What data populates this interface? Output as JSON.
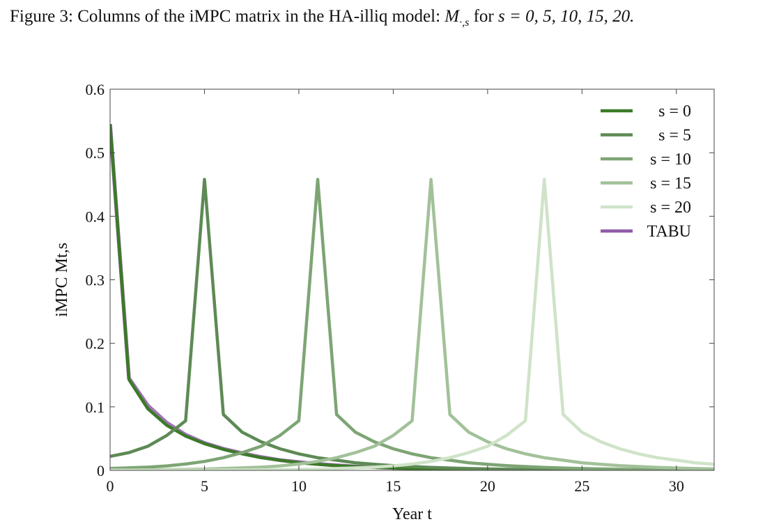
{
  "caption": {
    "prefix": "Figure 3: Columns of the iMPC matrix in the HA-illiq model: ",
    "math_symbol": "M",
    "math_subscript": "·,s",
    "suffix_text": " for ",
    "suffix_math": "s = 0, 5, 10, 15, 20."
  },
  "chart_data": {
    "type": "line",
    "xlabel": "Year t",
    "ylabel": "iMPC Mt,s",
    "xlim": [
      0,
      32
    ],
    "ylim": [
      0,
      0.6
    ],
    "xticks": [
      0,
      5,
      10,
      15,
      20,
      25,
      30
    ],
    "yticks": [
      0,
      0.1,
      0.2,
      0.3,
      0.4,
      0.5,
      0.6
    ],
    "ytick_labels": [
      "0",
      "0.1",
      "0.2",
      "0.3",
      "0.4",
      "0.5",
      "0.6"
    ],
    "grid": false,
    "legend_position": "top-right",
    "x": [
      0,
      1,
      2,
      3,
      4,
      5,
      6,
      7,
      8,
      9,
      10,
      11,
      12,
      13,
      14,
      15,
      16,
      17,
      18,
      19,
      20,
      21,
      22,
      23,
      24,
      25,
      26,
      27,
      28,
      29,
      30,
      31,
      32
    ],
    "series": [
      {
        "name": "s = 0",
        "color": "#3c7a28",
        "values": [
          0.545,
          0.143,
          0.097,
          0.071,
          0.054,
          0.042,
          0.033,
          0.026,
          0.02,
          0.016,
          0.012,
          0.0095,
          0.0075,
          0.006,
          0.0047,
          0.0037,
          0.0029,
          0.0023,
          0.0018,
          0.0014,
          0.0011,
          0.0009,
          0.0007,
          0.0006,
          0.0005,
          0.0004,
          0.0003,
          0.0003,
          0.0002,
          0.0002,
          0.0001,
          0.0001,
          0.0001
        ]
      },
      {
        "name": "s = 5",
        "color": "#5e8a55",
        "values": [
          0.022,
          0.028,
          0.038,
          0.055,
          0.078,
          0.458,
          0.088,
          0.06,
          0.045,
          0.034,
          0.026,
          0.02,
          0.016,
          0.012,
          0.0095,
          0.0075,
          0.006,
          0.0047,
          0.0037,
          0.0029,
          0.0023,
          0.0018,
          0.0014,
          0.0011,
          0.0009,
          0.0007,
          0.0006,
          0.0005,
          0.0004,
          0.0003,
          0.0003,
          0.0002,
          0.0002
        ]
      },
      {
        "name": "s = 10",
        "color": "#7da574",
        "values": [
          0.003,
          0.004,
          0.005,
          0.007,
          0.01,
          0.014,
          0.02,
          0.028,
          0.038,
          0.055,
          0.078,
          0.458,
          0.088,
          0.06,
          0.045,
          0.034,
          0.026,
          0.02,
          0.016,
          0.012,
          0.0095,
          0.0075,
          0.006,
          0.0047,
          0.0037,
          0.0029,
          0.0023,
          0.0018,
          0.0014,
          0.0011,
          0.0009,
          0.0007,
          0.0006
        ]
      },
      {
        "name": "s = 15",
        "color": "#a2c199",
        "values": [
          0.0005,
          0.0006,
          0.0008,
          0.0011,
          0.0015,
          0.002,
          0.003,
          0.004,
          0.005,
          0.007,
          0.01,
          0.014,
          0.02,
          0.028,
          0.038,
          0.055,
          0.078,
          0.458,
          0.088,
          0.06,
          0.045,
          0.034,
          0.026,
          0.02,
          0.016,
          0.012,
          0.0095,
          0.0075,
          0.006,
          0.0047,
          0.0037,
          0.0029,
          0.0023
        ]
      },
      {
        "name": "s = 20",
        "color": "#cfe3c8",
        "values": [
          0.0001,
          0.0001,
          0.0001,
          0.0002,
          0.0002,
          0.0003,
          0.0005,
          0.0006,
          0.0008,
          0.0011,
          0.0015,
          0.002,
          0.003,
          0.004,
          0.005,
          0.007,
          0.01,
          0.014,
          0.02,
          0.028,
          0.038,
          0.055,
          0.078,
          0.458,
          0.088,
          0.06,
          0.045,
          0.034,
          0.026,
          0.02,
          0.016,
          0.012,
          0.0095
        ]
      },
      {
        "name": "TABU",
        "color": "#8e5aa6",
        "style": "under",
        "values": [
          0.545,
          0.145,
          0.102,
          0.075,
          0.056,
          0.043,
          0.034,
          0.027,
          0.021,
          0.016,
          0.013,
          0.01,
          0.008,
          0.006,
          0.005,
          0.004,
          0.003,
          0.002,
          0.002,
          0.001,
          0.001,
          0.001,
          0.001,
          0.001,
          0.0005,
          0.0004,
          0.0003,
          0.0003,
          0.0002,
          0.0002,
          0.0001,
          0.0001,
          0.0001
        ]
      }
    ]
  }
}
